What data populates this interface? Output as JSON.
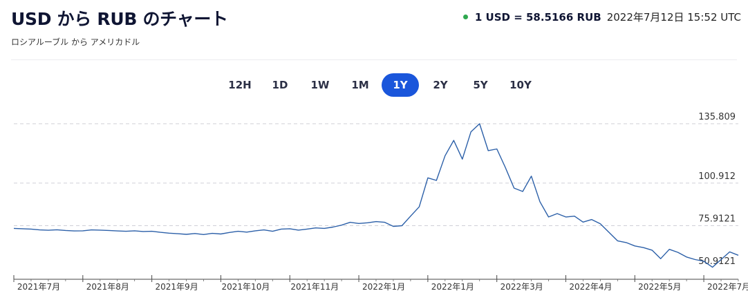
{
  "header": {
    "title": "USD から RUB のチャート",
    "subtitle": "ロシアルーブル から アメリカドル",
    "rate": "1 USD = 58.5166 RUB",
    "timestamp": "2022年7月12日 15:52 UTC"
  },
  "ranges": [
    {
      "label": "12H",
      "active": false
    },
    {
      "label": "1D",
      "active": false
    },
    {
      "label": "1W",
      "active": false
    },
    {
      "label": "1M",
      "active": false
    },
    {
      "label": "1Y",
      "active": true
    },
    {
      "label": "2Y",
      "active": false
    },
    {
      "label": "5Y",
      "active": false
    },
    {
      "label": "10Y",
      "active": false
    }
  ],
  "colors": {
    "line": "#2b5fa8",
    "active": "#1a56db",
    "live": "#2fa84f"
  },
  "chart_data": {
    "type": "line",
    "title": "USD から RUB のチャート",
    "xlabel": "",
    "ylabel": "",
    "grid": true,
    "ylim": [
      50.9121,
      135.809
    ],
    "yticks": [
      "135.809",
      "100.912",
      "75.9121",
      "50.9121"
    ],
    "xticks": [
      "2021年7月",
      "2021年8月",
      "2021年9月",
      "2021年10月",
      "2021年11月",
      "2022年1月",
      "2022年1月",
      "2022年3月",
      "2022年4月",
      "2022年5月",
      "2022年7月"
    ],
    "series": [
      {
        "values": [
          74.3,
          74.1,
          73.9,
          73.4,
          73.2,
          73.5,
          73.1,
          72.8,
          72.9,
          73.4,
          73.3,
          73.1,
          72.8,
          72.6,
          72.9,
          72.5,
          72.6,
          72.0,
          71.5,
          71.2,
          70.8,
          71.3,
          70.7,
          71.4,
          71.0,
          71.9,
          72.6,
          72.1,
          72.9,
          73.4,
          72.6,
          73.9,
          74.1,
          73.3,
          73.9,
          74.6,
          74.3,
          75.1,
          76.2,
          77.9,
          77.2,
          77.6,
          78.3,
          77.9,
          75.5,
          75.9,
          81.5,
          87.0,
          104.0,
          102.5,
          117.0,
          126.0,
          115.0,
          131.0,
          135.8,
          120.0,
          121.0,
          110.0,
          98.0,
          96.0,
          105.0,
          90.0,
          81.0,
          83.0,
          81.0,
          81.5,
          78.0,
          79.5,
          77.0,
          72.0,
          67.0,
          66.0,
          64.0,
          63.0,
          61.5,
          56.5,
          62.0,
          60.2,
          57.5,
          56.0,
          55.0,
          51.5,
          56.0,
          60.5,
          58.5
        ]
      }
    ]
  }
}
